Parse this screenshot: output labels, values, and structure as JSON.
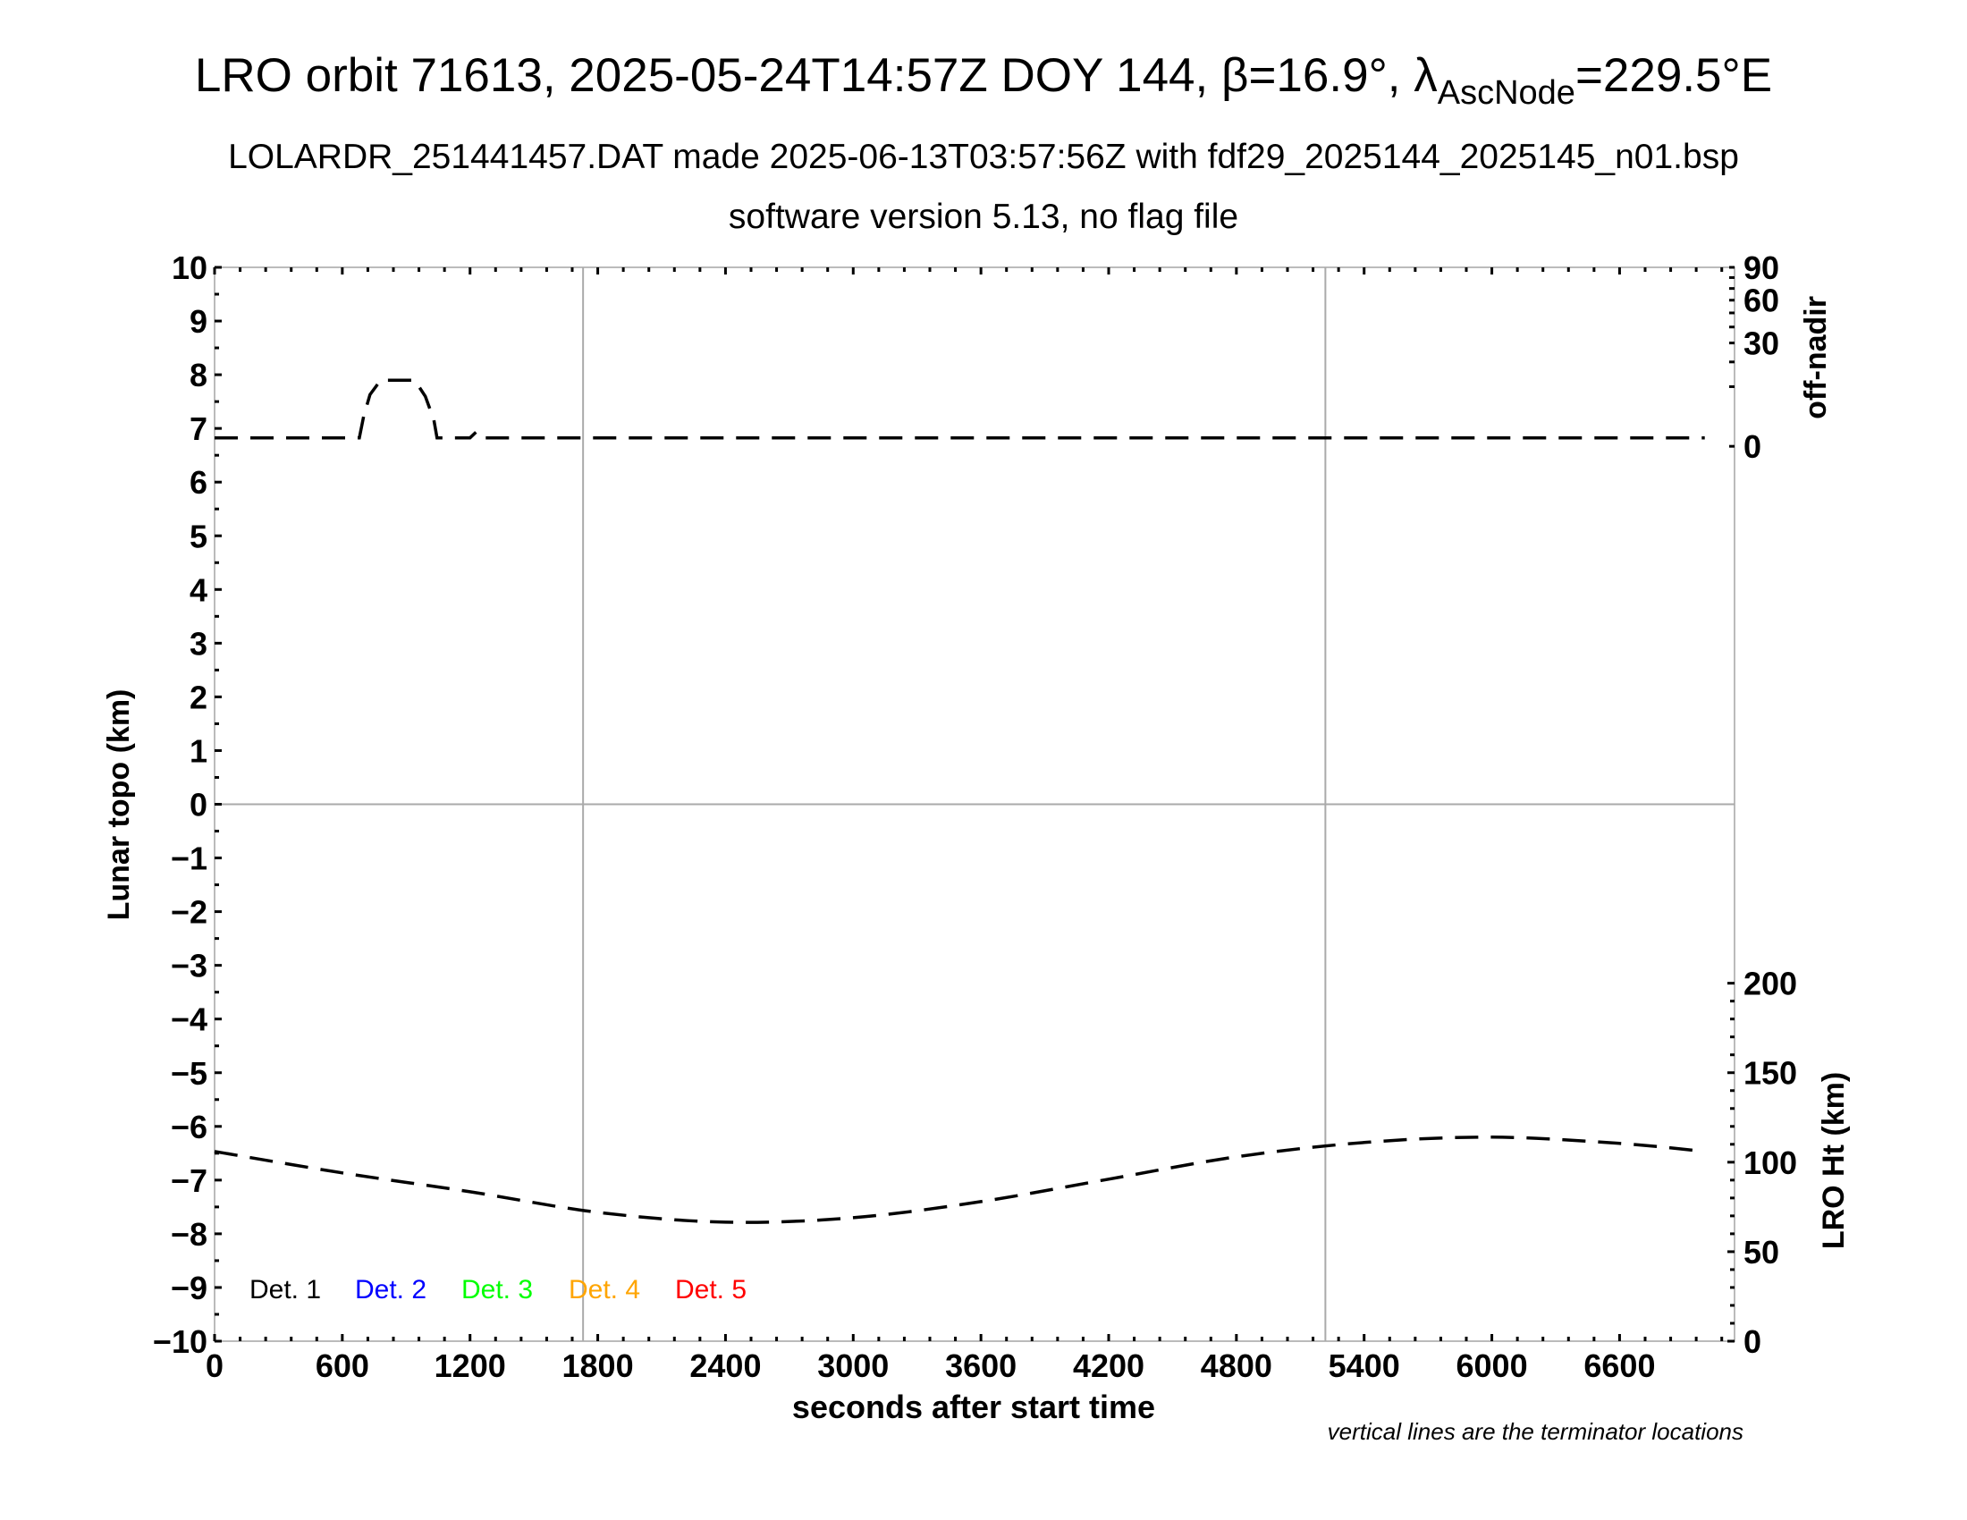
{
  "title": {
    "main": "LRO orbit 71613, 2025-05-24T14:57Z DOY 144, β=16.9°, λ",
    "sub": "AscNode",
    "tail": "=229.5°E",
    "line2": "LOLARDR_251441457.DAT made 2025-06-13T03:57:56Z with fdf29_2025144_2025145_n01.bsp",
    "line3": "software version 5.13, no flag file"
  },
  "note": "vertical lines are the terminator locations",
  "chart_data": {
    "type": "line",
    "xlabel": "seconds after start time",
    "ylabel": "Lunar topo (km)",
    "ylabel_right_top": "off-nadir",
    "ylabel_right_bottom": "LRO Ht (km)",
    "xlim": [
      0,
      7140
    ],
    "ylim": [
      -10,
      10
    ],
    "xticks": [
      "0",
      "600",
      "1200",
      "1800",
      "2400",
      "3000",
      "3600",
      "4200",
      "4800",
      "5400",
      "6000",
      "6600"
    ],
    "yticks": [
      "−10",
      "−9",
      "−8",
      "−7",
      "−6",
      "−5",
      "−4",
      "−3",
      "−2",
      "−1",
      "0",
      "1",
      "2",
      "3",
      "4",
      "5",
      "6",
      "7",
      "8",
      "9",
      "10"
    ],
    "off_nadir_axis": {
      "scale": "sqrt",
      "range": [
        0,
        90
      ],
      "ticks": [
        "0",
        "30",
        "60",
        "90"
      ]
    },
    "height_axis": {
      "range": [
        0,
        200
      ],
      "ticks": [
        "0",
        "50",
        "100",
        "150",
        "200"
      ]
    },
    "terminators": [
      1731,
      5218
    ],
    "zero_line": 0,
    "legend": [
      {
        "label": "Det. 1",
        "color": "#000000"
      },
      {
        "label": "Det. 2",
        "color": "#0000ff"
      },
      {
        "label": "Det. 3",
        "color": "#00ff00"
      },
      {
        "label": "Det. 4",
        "color": "#ffa500"
      },
      {
        "label": "Det. 5",
        "color": "#ff0000"
      }
    ],
    "series": [
      {
        "axis": "off-nadir (deg)",
        "style": "dashed",
        "x": [
          0,
          680,
          700,
          730,
          780,
          940,
          990,
          1030,
          1045,
          1200,
          1230,
          1260,
          1290,
          7000
        ],
        "y": [
          0.2,
          0.2,
          2.5,
          7.5,
          12.3,
          12.3,
          7.0,
          2.0,
          0.2,
          0.2,
          0.6,
          0.2,
          0.2,
          0.2
        ]
      },
      {
        "axis": "LRO Ht (km)",
        "style": "dashed",
        "x": [
          0,
          600,
          1200,
          1800,
          2400,
          3000,
          3600,
          4200,
          4800,
          5400,
          6000,
          6600,
          7000
        ],
        "y": [
          106,
          94,
          83.5,
          72,
          66.5,
          69,
          78,
          90.5,
          103,
          111,
          114,
          110.5,
          106
        ]
      }
    ]
  }
}
